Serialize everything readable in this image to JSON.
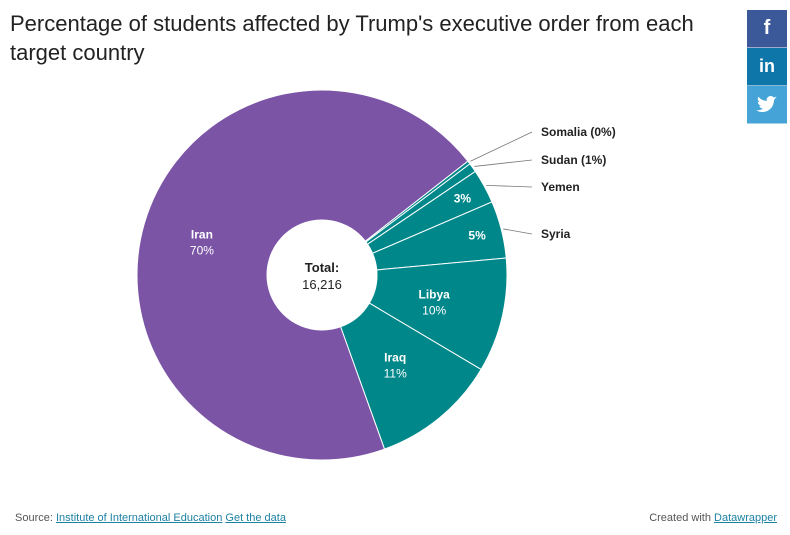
{
  "header": {
    "title": "Percentage of students affected by Trump's executive order from each target country"
  },
  "share": {
    "facebook": "f",
    "linkedin": "in",
    "twitter_icon": "twitter-bird",
    "colors": {
      "facebook": "#3b5998",
      "linkedin": "#0e76a8",
      "twitter": "#45a3d8"
    }
  },
  "chart_data": {
    "type": "pie",
    "variant": "donut",
    "center_label": {
      "title": "Total:",
      "value": "16,216"
    },
    "slices": [
      {
        "name": "Somalia",
        "value": 0.3,
        "label": "Somalia (0%)",
        "outside": true,
        "color": "#00878a"
      },
      {
        "name": "Sudan",
        "value": 0.8,
        "label": "Sudan (1%)",
        "outside": true,
        "color": "#00878a"
      },
      {
        "name": "Yemen",
        "value": 3,
        "label": "Yemen",
        "outside": true,
        "color": "#00878a"
      },
      {
        "name": "Syria",
        "value": 5,
        "label": "Syria",
        "outside": true,
        "color": "#00878a"
      },
      {
        "name": "Yemen-inner",
        "value": 3,
        "label": "3%",
        "inside_only": true
      },
      {
        "name": "Syria-inner",
        "value": 5,
        "label": "5%",
        "inside_only": true
      },
      {
        "name": "Libya",
        "value": 10,
        "label": "Libya",
        "pct": "10%",
        "color": "#00878a"
      },
      {
        "name": "Iraq",
        "value": 11,
        "label": "Iraq",
        "pct": "11%",
        "color": "#00878a"
      },
      {
        "name": "Iran",
        "value": 70,
        "label": "Iran",
        "pct": "70%",
        "color": "#7b54a6"
      }
    ],
    "colors": {
      "teal": "#00878a",
      "purple": "#7b54a6"
    }
  },
  "footer": {
    "source_prefix": "Source:",
    "source_link": "Institute of International Education",
    "get_data": "Get the data",
    "created_prefix": "Created with",
    "created_link": "Datawrapper"
  }
}
